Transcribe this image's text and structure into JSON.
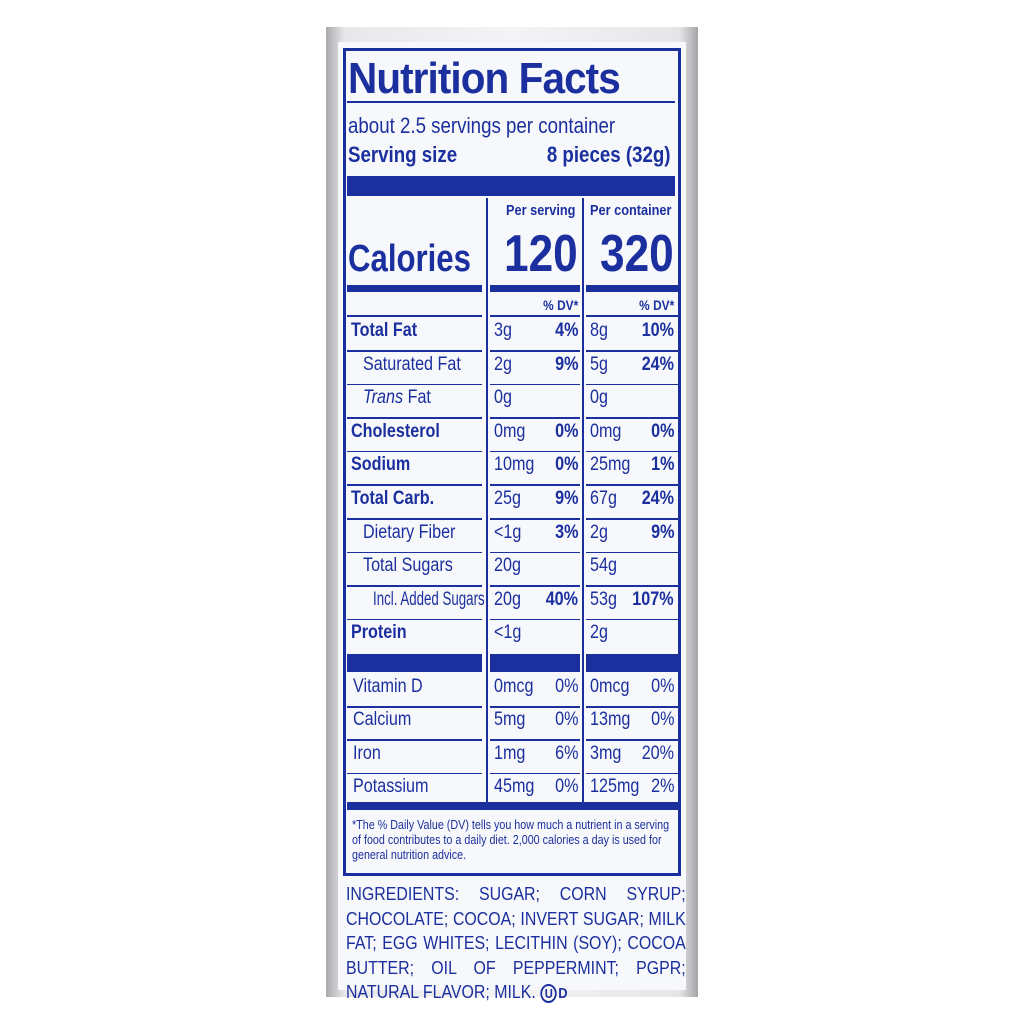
{
  "label": {
    "title": "Nutrition Facts",
    "servings": "about 2.5 servings per container",
    "serving_size_label": "Serving size",
    "serving_size_value": "8 pieces (32g)",
    "per_serving_header": "Per serving",
    "per_container_header": "Per container",
    "calories_label": "Calories",
    "calories_serving": "120",
    "calories_container": "320",
    "dv_header": "% DV*",
    "rows": [
      {
        "name": "Total Fat",
        "bold": true,
        "indent": 0,
        "s_amt": "3g",
        "s_dv": "4%",
        "c_amt": "8g",
        "c_dv": "10%"
      },
      {
        "name": "Saturated Fat",
        "bold": false,
        "indent": 1,
        "s_amt": "2g",
        "s_dv": "9%",
        "c_amt": "5g",
        "c_dv": "24%"
      },
      {
        "name": "Trans Fat",
        "bold": false,
        "indent": 1,
        "s_amt": "0g",
        "s_dv": "",
        "c_amt": "0g",
        "c_dv": ""
      },
      {
        "name": "Cholesterol",
        "bold": true,
        "indent": 0,
        "s_amt": "0mg",
        "s_dv": "0%",
        "c_amt": "0mg",
        "c_dv": "0%"
      },
      {
        "name": "Sodium",
        "bold": true,
        "indent": 0,
        "s_amt": "10mg",
        "s_dv": "0%",
        "c_amt": "25mg",
        "c_dv": "1%"
      },
      {
        "name": "Total Carb.",
        "bold": true,
        "indent": 0,
        "s_amt": "25g",
        "s_dv": "9%",
        "c_amt": "67g",
        "c_dv": "24%"
      },
      {
        "name": "Dietary Fiber",
        "bold": false,
        "indent": 1,
        "s_amt": "<1g",
        "s_dv": "3%",
        "c_amt": "2g",
        "c_dv": "9%"
      },
      {
        "name": "Total Sugars",
        "bold": false,
        "indent": 1,
        "s_amt": "20g",
        "s_dv": "",
        "c_amt": "54g",
        "c_dv": ""
      },
      {
        "name": "Incl. Added Sugars",
        "bold": false,
        "indent": 2,
        "s_amt": "20g",
        "s_dv": "40%",
        "c_amt": "53g",
        "c_dv": "107%"
      },
      {
        "name": "Protein",
        "bold": true,
        "indent": 0,
        "s_amt": "<1g",
        "s_dv": "",
        "c_amt": "2g",
        "c_dv": ""
      }
    ],
    "micros": [
      {
        "name": "Vitamin D",
        "s_amt": "0mcg",
        "s_dv": "0%",
        "c_amt": "0mcg",
        "c_dv": "0%"
      },
      {
        "name": "Calcium",
        "s_amt": "5mg",
        "s_dv": "0%",
        "c_amt": "13mg",
        "c_dv": "0%"
      },
      {
        "name": "Iron",
        "s_amt": "1mg",
        "s_dv": "6%",
        "c_amt": "3mg",
        "c_dv": "20%"
      },
      {
        "name": "Potassium",
        "s_amt": "45mg",
        "s_dv": "0%",
        "c_amt": "125mg",
        "c_dv": "2%"
      }
    ],
    "footnote": "*The % Daily Value (DV) tells you how much a nutrient in a serving of food contributes to a daily diet. 2,000 calories a day is used for general nutrition advice."
  },
  "ingredients": "INGREDIENTS: SUGAR; CORN SYRUP; CHOCOLATE; COCOA; INVERT SUGAR; MILK FAT; EGG WHITES; LECITHIN (SOY); COCOA BUTTER; OIL OF PEPPERMINT; PGPR; NATURAL FLAVOR; MILK.",
  "kosher_mark": "OUD",
  "colors": {
    "ink": "#1b2f9e",
    "foil": "#c8c8cc"
  }
}
